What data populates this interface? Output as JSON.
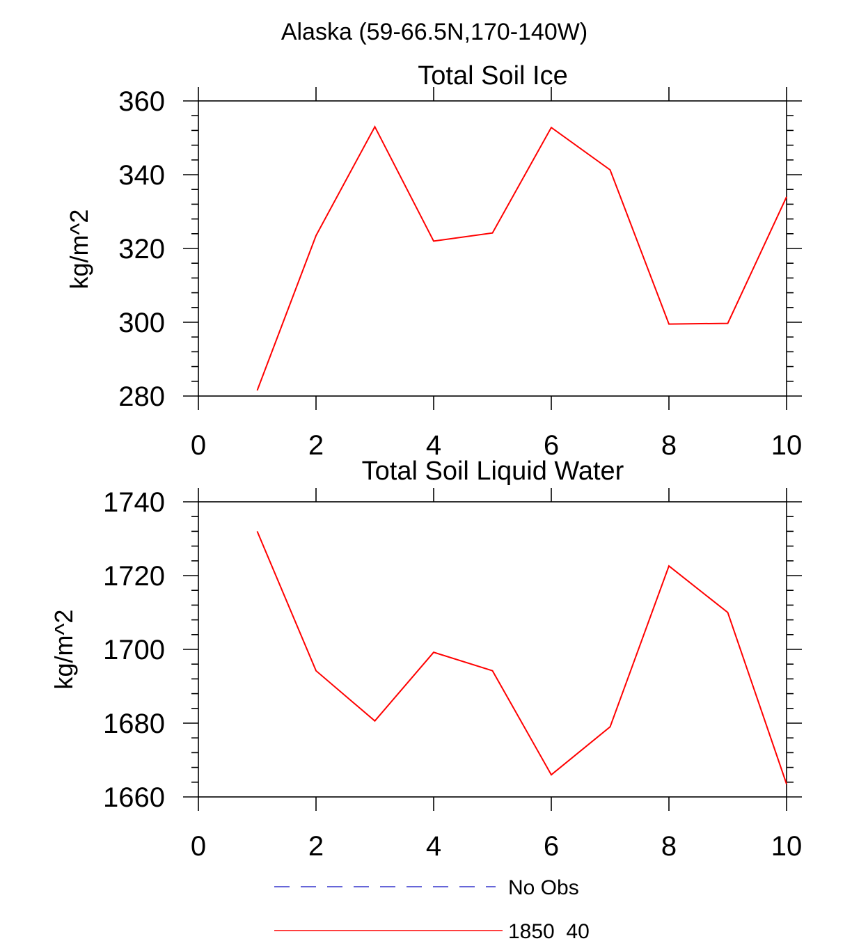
{
  "figure_title": "Alaska (59-66.5N,170-140W)",
  "colors": {
    "series": "#ff0000",
    "obs": "#3333cc",
    "axis": "#000000"
  },
  "chart_data": [
    {
      "type": "line",
      "title": "Total Soil Ice",
      "xlabel": "",
      "ylabel": "kg/m^2",
      "xlim": [
        0,
        10
      ],
      "ylim": [
        280,
        360
      ],
      "xticks": [
        0,
        2,
        4,
        6,
        8,
        10
      ],
      "yticks": [
        280,
        300,
        320,
        340,
        360
      ],
      "series": [
        {
          "name": "1850_40",
          "x": [
            1,
            2,
            3,
            4,
            5,
            6,
            7,
            8,
            9,
            10
          ],
          "values": [
            281.5,
            323.5,
            353.0,
            322.0,
            324.2,
            352.8,
            341.3,
            299.5,
            299.7,
            334.0
          ]
        }
      ]
    },
    {
      "type": "line",
      "title": "Total Soil Liquid Water",
      "xlabel": "",
      "ylabel": "kg/m^2",
      "xlim": [
        0,
        10
      ],
      "ylim": [
        1660,
        1740
      ],
      "xticks": [
        0,
        2,
        4,
        6,
        8,
        10
      ],
      "yticks": [
        1660,
        1680,
        1700,
        1720,
        1740
      ],
      "series": [
        {
          "name": "1850_40",
          "x": [
            1,
            2,
            3,
            4,
            5,
            6,
            7,
            8,
            9,
            10
          ],
          "values": [
            1732.0,
            1694.2,
            1680.6,
            1699.2,
            1694.2,
            1666.0,
            1679.0,
            1722.6,
            1710.0,
            1663.5
          ]
        }
      ]
    }
  ],
  "legend": [
    {
      "label": "No Obs",
      "style": "dashed"
    },
    {
      "label": "1850_40",
      "style": "solid"
    }
  ]
}
